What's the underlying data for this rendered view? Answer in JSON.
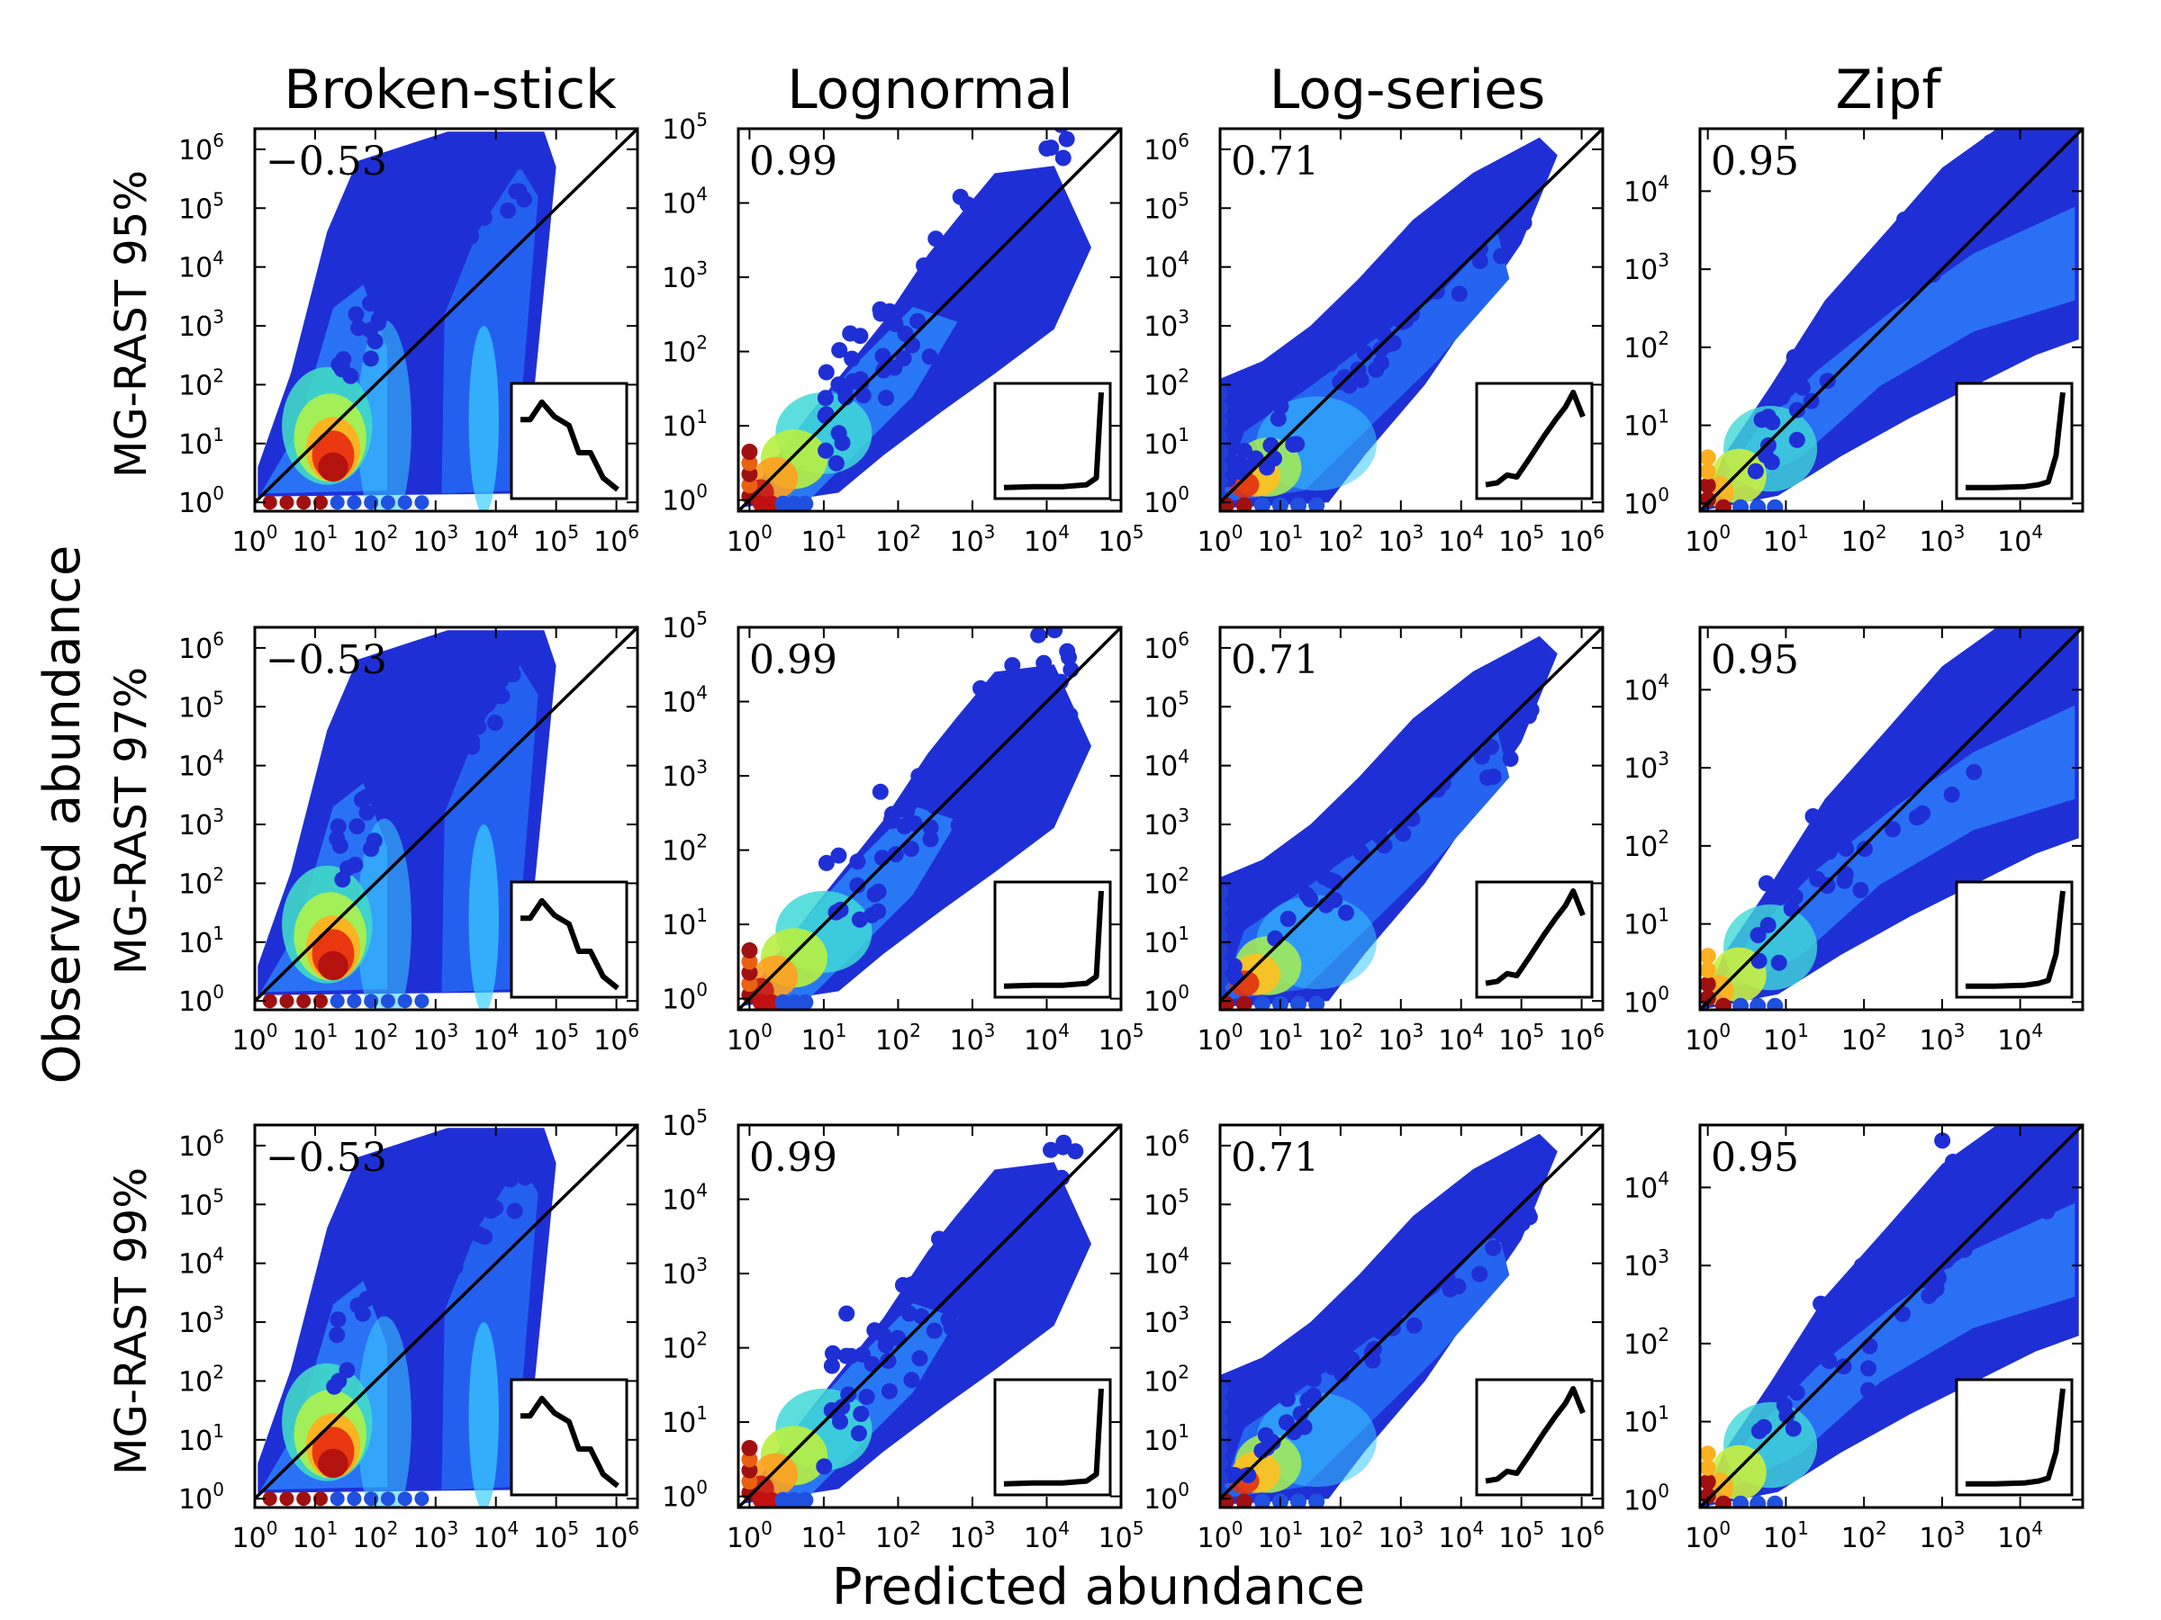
{
  "figure": {
    "xlabel": "Predicted abundance",
    "ylabel": "Observed abundance"
  },
  "columns": [
    "Broken-stick",
    "Lognormal",
    "Log-series",
    "Zipf"
  ],
  "rows": [
    "MG-RAST 95%",
    "MG-RAST 97%",
    "MG-RAST 99%"
  ],
  "chart_data": [
    {
      "type": "scatter",
      "row": "MG-RAST 95%",
      "column": "Broken-stick",
      "annotation": "−0.53",
      "xlim": [
        0,
        6.35
      ],
      "ylim": [
        -0.15,
        6.35
      ],
      "x_ticks": [
        "10^0",
        "10^1",
        "10^2",
        "10^3",
        "10^4",
        "10^5",
        "10^6"
      ],
      "y_ticks": [
        "10^0",
        "10^1",
        "10^2",
        "10^3",
        "10^4",
        "10^5",
        "10^6"
      ],
      "one_to_one_line": true,
      "inset_curve": [
        [
          0,
          0.72
        ],
        [
          0.1,
          0.72
        ],
        [
          0.22,
          0.9
        ],
        [
          0.35,
          0.75
        ],
        [
          0.5,
          0.66
        ],
        [
          0.6,
          0.38
        ],
        [
          0.72,
          0.38
        ],
        [
          0.85,
          0.12
        ],
        [
          1,
          0
        ]
      ]
    },
    {
      "type": "scatter",
      "row": "MG-RAST 95%",
      "column": "Lognormal",
      "annotation": "0.99",
      "xlim": [
        -0.15,
        5.0
      ],
      "ylim": [
        -0.15,
        5.0
      ],
      "x_ticks": [
        "10^0",
        "10^1",
        "10^2",
        "10^3",
        "10^4",
        "10^5"
      ],
      "y_ticks": [
        "10^0",
        "10^1",
        "10^2",
        "10^3",
        "10^4",
        "10^5"
      ],
      "one_to_one_line": true,
      "inset_curve": [
        [
          0,
          0.02
        ],
        [
          0.3,
          0.03
        ],
        [
          0.6,
          0.03
        ],
        [
          0.85,
          0.05
        ],
        [
          0.95,
          0.12
        ],
        [
          1,
          1
        ]
      ]
    },
    {
      "type": "scatter",
      "row": "MG-RAST 95%",
      "column": "Log-series",
      "annotation": "0.71",
      "xlim": [
        0,
        6.35
      ],
      "ylim": [
        -0.15,
        6.35
      ],
      "x_ticks": [
        "10^0",
        "10^1",
        "10^2",
        "10^3",
        "10^4",
        "10^5",
        "10^6"
      ],
      "y_ticks": [
        "10^0",
        "10^1",
        "10^2",
        "10^3",
        "10^4",
        "10^5",
        "10^6"
      ],
      "one_to_one_line": true,
      "inset_curve": [
        [
          0,
          0.05
        ],
        [
          0.12,
          0.07
        ],
        [
          0.22,
          0.15
        ],
        [
          0.32,
          0.13
        ],
        [
          0.45,
          0.32
        ],
        [
          0.6,
          0.55
        ],
        [
          0.72,
          0.72
        ],
        [
          0.82,
          0.85
        ],
        [
          0.9,
          1
        ],
        [
          1,
          0.75
        ]
      ]
    },
    {
      "type": "scatter",
      "row": "MG-RAST 95%",
      "column": "Zipf",
      "annotation": "0.95",
      "xlim": [
        -0.1,
        4.8
      ],
      "ylim": [
        -0.1,
        4.8
      ],
      "x_ticks": [
        "10^0",
        "10^1",
        "10^2",
        "10^3",
        "10^4"
      ],
      "y_ticks": [
        "10^0",
        "10^1",
        "10^2",
        "10^3",
        "10^4"
      ],
      "one_to_one_line": true,
      "inset_curve": [
        [
          0,
          0.02
        ],
        [
          0.3,
          0.02
        ],
        [
          0.6,
          0.03
        ],
        [
          0.75,
          0.05
        ],
        [
          0.85,
          0.08
        ],
        [
          0.93,
          0.35
        ],
        [
          1,
          1
        ]
      ]
    },
    {
      "type": "scatter",
      "row": "MG-RAST 97%",
      "column": "Broken-stick",
      "annotation": "−0.53",
      "xlim": [
        0,
        6.35
      ],
      "ylim": [
        -0.15,
        6.35
      ],
      "x_ticks": [
        "10^0",
        "10^1",
        "10^2",
        "10^3",
        "10^4",
        "10^5",
        "10^6"
      ],
      "y_ticks": [
        "10^0",
        "10^1",
        "10^2",
        "10^3",
        "10^4",
        "10^5",
        "10^6"
      ],
      "one_to_one_line": true,
      "inset_curve": [
        [
          0,
          0.72
        ],
        [
          0.1,
          0.72
        ],
        [
          0.22,
          0.9
        ],
        [
          0.35,
          0.75
        ],
        [
          0.5,
          0.66
        ],
        [
          0.6,
          0.38
        ],
        [
          0.72,
          0.38
        ],
        [
          0.85,
          0.12
        ],
        [
          1,
          0
        ]
      ]
    },
    {
      "type": "scatter",
      "row": "MG-RAST 97%",
      "column": "Lognormal",
      "annotation": "0.99",
      "xlim": [
        -0.15,
        5.0
      ],
      "ylim": [
        -0.15,
        5.0
      ],
      "x_ticks": [
        "10^0",
        "10^1",
        "10^2",
        "10^3",
        "10^4",
        "10^5"
      ],
      "y_ticks": [
        "10^0",
        "10^1",
        "10^2",
        "10^3",
        "10^4",
        "10^5"
      ],
      "one_to_one_line": true,
      "inset_curve": [
        [
          0,
          0.02
        ],
        [
          0.3,
          0.03
        ],
        [
          0.6,
          0.03
        ],
        [
          0.85,
          0.05
        ],
        [
          0.95,
          0.12
        ],
        [
          1,
          1
        ]
      ]
    },
    {
      "type": "scatter",
      "row": "MG-RAST 97%",
      "column": "Log-series",
      "annotation": "0.71",
      "xlim": [
        0,
        6.35
      ],
      "ylim": [
        -0.15,
        6.35
      ],
      "x_ticks": [
        "10^0",
        "10^1",
        "10^2",
        "10^3",
        "10^4",
        "10^5",
        "10^6"
      ],
      "y_ticks": [
        "10^0",
        "10^1",
        "10^2",
        "10^3",
        "10^4",
        "10^5",
        "10^6"
      ],
      "one_to_one_line": true,
      "inset_curve": [
        [
          0,
          0.05
        ],
        [
          0.12,
          0.07
        ],
        [
          0.22,
          0.15
        ],
        [
          0.32,
          0.13
        ],
        [
          0.45,
          0.32
        ],
        [
          0.6,
          0.55
        ],
        [
          0.72,
          0.72
        ],
        [
          0.82,
          0.85
        ],
        [
          0.9,
          1
        ],
        [
          1,
          0.75
        ]
      ]
    },
    {
      "type": "scatter",
      "row": "MG-RAST 97%",
      "column": "Zipf",
      "annotation": "0.95",
      "xlim": [
        -0.1,
        4.8
      ],
      "ylim": [
        -0.1,
        4.8
      ],
      "x_ticks": [
        "10^0",
        "10^1",
        "10^2",
        "10^3",
        "10^4"
      ],
      "y_ticks": [
        "10^0",
        "10^1",
        "10^2",
        "10^3",
        "10^4"
      ],
      "one_to_one_line": true,
      "inset_curve": [
        [
          0,
          0.02
        ],
        [
          0.3,
          0.02
        ],
        [
          0.6,
          0.03
        ],
        [
          0.75,
          0.05
        ],
        [
          0.85,
          0.08
        ],
        [
          0.93,
          0.35
        ],
        [
          1,
          1
        ]
      ]
    },
    {
      "type": "scatter",
      "row": "MG-RAST 99%",
      "column": "Broken-stick",
      "annotation": "−0.53",
      "xlim": [
        0,
        6.35
      ],
      "ylim": [
        -0.15,
        6.35
      ],
      "x_ticks": [
        "10^0",
        "10^1",
        "10^2",
        "10^3",
        "10^4",
        "10^5",
        "10^6"
      ],
      "y_ticks": [
        "10^0",
        "10^1",
        "10^2",
        "10^3",
        "10^4",
        "10^5",
        "10^6"
      ],
      "one_to_one_line": true,
      "inset_curve": [
        [
          0,
          0.72
        ],
        [
          0.1,
          0.72
        ],
        [
          0.22,
          0.9
        ],
        [
          0.35,
          0.75
        ],
        [
          0.5,
          0.66
        ],
        [
          0.6,
          0.38
        ],
        [
          0.72,
          0.38
        ],
        [
          0.85,
          0.12
        ],
        [
          1,
          0
        ]
      ]
    },
    {
      "type": "scatter",
      "row": "MG-RAST 99%",
      "column": "Lognormal",
      "annotation": "0.99",
      "xlim": [
        -0.15,
        5.0
      ],
      "ylim": [
        -0.15,
        5.0
      ],
      "x_ticks": [
        "10^0",
        "10^1",
        "10^2",
        "10^3",
        "10^4",
        "10^5"
      ],
      "y_ticks": [
        "10^0",
        "10^1",
        "10^2",
        "10^3",
        "10^4",
        "10^5"
      ],
      "one_to_one_line": true,
      "inset_curve": [
        [
          0,
          0.02
        ],
        [
          0.3,
          0.03
        ],
        [
          0.6,
          0.03
        ],
        [
          0.85,
          0.05
        ],
        [
          0.95,
          0.12
        ],
        [
          1,
          1
        ]
      ]
    },
    {
      "type": "scatter",
      "row": "MG-RAST 99%",
      "column": "Log-series",
      "annotation": "0.71",
      "xlim": [
        0,
        6.35
      ],
      "ylim": [
        -0.15,
        6.35
      ],
      "x_ticks": [
        "10^0",
        "10^1",
        "10^2",
        "10^3",
        "10^4",
        "10^5",
        "10^6"
      ],
      "y_ticks": [
        "10^0",
        "10^1",
        "10^2",
        "10^3",
        "10^4",
        "10^5",
        "10^6"
      ],
      "one_to_one_line": true,
      "inset_curve": [
        [
          0,
          0.05
        ],
        [
          0.12,
          0.07
        ],
        [
          0.22,
          0.15
        ],
        [
          0.32,
          0.13
        ],
        [
          0.45,
          0.32
        ],
        [
          0.6,
          0.55
        ],
        [
          0.72,
          0.72
        ],
        [
          0.82,
          0.85
        ],
        [
          0.9,
          1
        ],
        [
          1,
          0.75
        ]
      ]
    },
    {
      "type": "scatter",
      "row": "MG-RAST 99%",
      "column": "Zipf",
      "annotation": "0.95",
      "xlim": [
        -0.1,
        4.8
      ],
      "ylim": [
        -0.1,
        4.8
      ],
      "x_ticks": [
        "10^0",
        "10^1",
        "10^2",
        "10^3",
        "10^4"
      ],
      "y_ticks": [
        "10^0",
        "10^1",
        "10^2",
        "10^3",
        "10^4"
      ],
      "one_to_one_line": true,
      "inset_curve": [
        [
          0,
          0.02
        ],
        [
          0.3,
          0.02
        ],
        [
          0.6,
          0.03
        ],
        [
          0.75,
          0.05
        ],
        [
          0.85,
          0.08
        ],
        [
          0.93,
          0.35
        ],
        [
          1,
          1
        ]
      ]
    }
  ],
  "colors": {
    "axis": "#000000",
    "one_to_one_line": "#000000",
    "density_low": "#1f2fd6",
    "density_mid": "#32d4ff",
    "density_high": "#c01010"
  }
}
